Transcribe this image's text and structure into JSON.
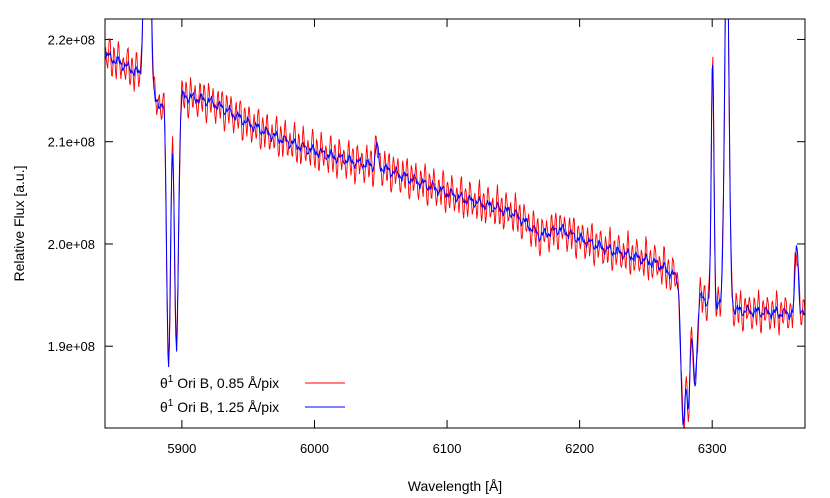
{
  "chart_data": {
    "type": "line",
    "title": "",
    "xlabel": "Wavelength [Å]",
    "ylabel": "Relative Flux [a.u.]",
    "xlim": [
      5842,
      6370
    ],
    "ylim": [
      182000000,
      222000000
    ],
    "x_ticks": [
      {
        "value": 5900,
        "label": "5900"
      },
      {
        "value": 6000,
        "label": "6000"
      },
      {
        "value": 6100,
        "label": "6100"
      },
      {
        "value": 6200,
        "label": "6200"
      },
      {
        "value": 6300,
        "label": "6300"
      }
    ],
    "y_ticks": [
      {
        "value": 190000000,
        "label": "1.9e+08"
      },
      {
        "value": 200000000,
        "label": "2.0e+08"
      },
      {
        "value": 210000000,
        "label": "2.1e+08"
      },
      {
        "value": 220000000,
        "label": "2.2e+08"
      }
    ],
    "grid": false,
    "legend_position": "bottom-left",
    "series": [
      {
        "name_prefix": "θ",
        "name_sup": "1",
        "name_suffix": " Ori B, 0.85 Å/pix",
        "color": "#ff0000",
        "ripple": 1500000,
        "ripple_period": 3.4
      },
      {
        "name_prefix": "θ",
        "name_sup": "1",
        "name_suffix": " Ori B, 1.25 Å/pix",
        "color": "#0000ff",
        "ripple": 0,
        "ripple_period": 0
      }
    ],
    "continuum": [
      [
        5842,
        218500000
      ],
      [
        5860,
        217200000
      ],
      [
        5870,
        216500000
      ],
      [
        5876,
        215000000
      ],
      [
        5880,
        213800000
      ],
      [
        5885,
        213700000
      ],
      [
        5888,
        214500000
      ],
      [
        5893,
        213500000
      ],
      [
        5898,
        213800000
      ],
      [
        5900,
        214500000
      ],
      [
        5920,
        214000000
      ],
      [
        5935,
        213000000
      ],
      [
        5950,
        211800000
      ],
      [
        5970,
        210500000
      ],
      [
        5990,
        209500000
      ],
      [
        6010,
        208700000
      ],
      [
        6030,
        208000000
      ],
      [
        6050,
        207500000
      ],
      [
        6070,
        206500000
      ],
      [
        6090,
        205500000
      ],
      [
        6110,
        204500000
      ],
      [
        6130,
        203800000
      ],
      [
        6150,
        203000000
      ],
      [
        6160,
        202000000
      ],
      [
        6170,
        200800000
      ],
      [
        6185,
        201500000
      ],
      [
        6200,
        200500000
      ],
      [
        6220,
        199500000
      ],
      [
        6240,
        198800000
      ],
      [
        6260,
        198000000
      ],
      [
        6270,
        197000000
      ],
      [
        6275,
        196500000
      ],
      [
        6300,
        194000000
      ],
      [
        6320,
        193500000
      ],
      [
        6340,
        193300000
      ],
      [
        6360,
        193200000
      ],
      [
        6370,
        193000000
      ]
    ],
    "features": [
      {
        "center": 5872,
        "width": 1.2,
        "depth": 15000000
      },
      {
        "center": 5876,
        "width": 1.2,
        "depth": 15000000
      },
      {
        "center": 5889.9,
        "width": 1.4,
        "depth": -26000000
      },
      {
        "center": 5895.9,
        "width": 1.4,
        "depth": -24000000
      },
      {
        "center": 6047,
        "width": 1.0,
        "depth": 2200000
      },
      {
        "center": 6278,
        "width": 1.5,
        "depth": -14000000
      },
      {
        "center": 6282,
        "width": 1.5,
        "depth": -11000000
      },
      {
        "center": 6287,
        "width": 1.5,
        "depth": -9000000
      },
      {
        "center": 6300.3,
        "width": 1.0,
        "depth": 24000000
      },
      {
        "center": 6311,
        "width": 1.6,
        "depth": 38000000
      },
      {
        "center": 6363.8,
        "width": 1.2,
        "depth": 7000000
      }
    ]
  }
}
